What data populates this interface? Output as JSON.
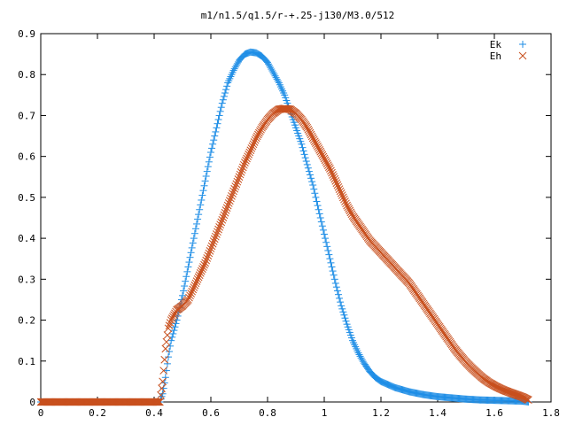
{
  "chart_data": {
    "type": "scatter",
    "title": "m1/n1.5/q1.5/r-+.25-j130/M3.0/512",
    "xlabel": "",
    "ylabel": "",
    "xlim": [
      0,
      1.8
    ],
    "ylim": [
      0,
      0.9
    ],
    "xticks": [
      "0",
      "0.2",
      "0.4",
      "0.6",
      "0.8",
      "1",
      "1.2",
      "1.4",
      "1.6",
      "1.8"
    ],
    "yticks": [
      "0",
      "0.1",
      "0.2",
      "0.3",
      "0.4",
      "0.5",
      "0.6",
      "0.7",
      "0.8",
      "0.9"
    ],
    "grid": false,
    "legend_position": "top-right",
    "series": [
      {
        "name": "Ek",
        "marker": "plus",
        "color": "#1f8ee6",
        "points": [
          [
            0.0,
            0.0
          ],
          [
            0.42,
            0.0
          ],
          [
            0.43,
            0.02
          ],
          [
            0.44,
            0.06
          ],
          [
            0.45,
            0.11
          ],
          [
            0.46,
            0.15
          ],
          [
            0.48,
            0.2
          ],
          [
            0.5,
            0.26
          ],
          [
            0.52,
            0.33
          ],
          [
            0.54,
            0.4
          ],
          [
            0.56,
            0.47
          ],
          [
            0.58,
            0.54
          ],
          [
            0.6,
            0.61
          ],
          [
            0.62,
            0.67
          ],
          [
            0.64,
            0.73
          ],
          [
            0.66,
            0.78
          ],
          [
            0.68,
            0.81
          ],
          [
            0.7,
            0.835
          ],
          [
            0.72,
            0.85
          ],
          [
            0.74,
            0.855
          ],
          [
            0.76,
            0.853
          ],
          [
            0.78,
            0.845
          ],
          [
            0.8,
            0.83
          ],
          [
            0.82,
            0.805
          ],
          [
            0.84,
            0.78
          ],
          [
            0.86,
            0.75
          ],
          [
            0.88,
            0.71
          ],
          [
            0.9,
            0.67
          ],
          [
            0.92,
            0.63
          ],
          [
            0.94,
            0.58
          ],
          [
            0.96,
            0.53
          ],
          [
            0.98,
            0.47
          ],
          [
            1.0,
            0.41
          ],
          [
            1.02,
            0.35
          ],
          [
            1.04,
            0.29
          ],
          [
            1.06,
            0.235
          ],
          [
            1.08,
            0.19
          ],
          [
            1.1,
            0.15
          ],
          [
            1.12,
            0.12
          ],
          [
            1.14,
            0.095
          ],
          [
            1.16,
            0.075
          ],
          [
            1.18,
            0.06
          ],
          [
            1.2,
            0.05
          ],
          [
            1.25,
            0.035
          ],
          [
            1.3,
            0.025
          ],
          [
            1.35,
            0.018
          ],
          [
            1.4,
            0.013
          ],
          [
            1.45,
            0.01
          ],
          [
            1.5,
            0.007
          ],
          [
            1.55,
            0.005
          ],
          [
            1.6,
            0.004
          ],
          [
            1.65,
            0.003
          ],
          [
            1.7,
            0.002
          ],
          [
            1.72,
            0.0
          ]
        ]
      },
      {
        "name": "Eh",
        "marker": "cross",
        "color": "#c8501e",
        "points": [
          [
            0.0,
            0.0
          ],
          [
            0.42,
            0.0
          ],
          [
            0.43,
            0.05
          ],
          [
            0.44,
            0.13
          ],
          [
            0.45,
            0.18
          ],
          [
            0.46,
            0.2
          ],
          [
            0.48,
            0.225
          ],
          [
            0.5,
            0.235
          ],
          [
            0.52,
            0.25
          ],
          [
            0.54,
            0.28
          ],
          [
            0.56,
            0.31
          ],
          [
            0.58,
            0.34
          ],
          [
            0.6,
            0.375
          ],
          [
            0.62,
            0.41
          ],
          [
            0.64,
            0.445
          ],
          [
            0.66,
            0.48
          ],
          [
            0.68,
            0.515
          ],
          [
            0.7,
            0.55
          ],
          [
            0.72,
            0.585
          ],
          [
            0.74,
            0.615
          ],
          [
            0.76,
            0.645
          ],
          [
            0.78,
            0.67
          ],
          [
            0.8,
            0.69
          ],
          [
            0.82,
            0.705
          ],
          [
            0.84,
            0.715
          ],
          [
            0.86,
            0.717
          ],
          [
            0.88,
            0.715
          ],
          [
            0.9,
            0.705
          ],
          [
            0.92,
            0.69
          ],
          [
            0.94,
            0.67
          ],
          [
            0.96,
            0.645
          ],
          [
            0.98,
            0.62
          ],
          [
            1.0,
            0.595
          ],
          [
            1.02,
            0.57
          ],
          [
            1.04,
            0.54
          ],
          [
            1.06,
            0.51
          ],
          [
            1.08,
            0.48
          ],
          [
            1.1,
            0.455
          ],
          [
            1.12,
            0.435
          ],
          [
            1.14,
            0.415
          ],
          [
            1.16,
            0.395
          ],
          [
            1.18,
            0.38
          ],
          [
            1.2,
            0.365
          ],
          [
            1.22,
            0.35
          ],
          [
            1.24,
            0.335
          ],
          [
            1.26,
            0.32
          ],
          [
            1.28,
            0.305
          ],
          [
            1.3,
            0.29
          ],
          [
            1.32,
            0.27
          ],
          [
            1.34,
            0.25
          ],
          [
            1.36,
            0.23
          ],
          [
            1.38,
            0.21
          ],
          [
            1.4,
            0.19
          ],
          [
            1.42,
            0.17
          ],
          [
            1.44,
            0.15
          ],
          [
            1.46,
            0.13
          ],
          [
            1.48,
            0.113
          ],
          [
            1.5,
            0.097
          ],
          [
            1.52,
            0.083
          ],
          [
            1.54,
            0.07
          ],
          [
            1.56,
            0.058
          ],
          [
            1.58,
            0.048
          ],
          [
            1.6,
            0.04
          ],
          [
            1.62,
            0.033
          ],
          [
            1.64,
            0.027
          ],
          [
            1.66,
            0.022
          ],
          [
            1.68,
            0.017
          ],
          [
            1.7,
            0.012
          ],
          [
            1.72,
            0.005
          ]
        ]
      }
    ]
  }
}
